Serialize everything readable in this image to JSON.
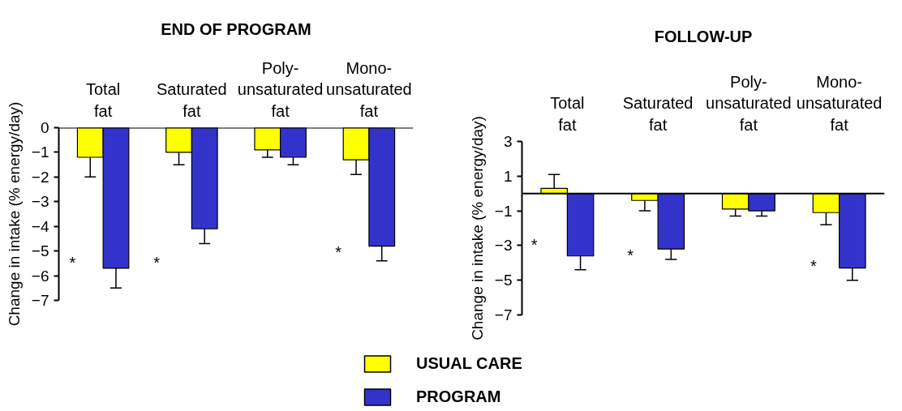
{
  "chart_data": [
    {
      "type": "bar",
      "title": "END OF PROGRAM",
      "ylabel": "Change in intake (% energy/day)",
      "categories": [
        "Total\nfat",
        "Saturated\nfat",
        "Poly-\nunsaturated\nfat",
        "Mono-\nunsaturated\nfat"
      ],
      "series": [
        {
          "name": "USUAL CARE",
          "color": "#ffff00",
          "values": [
            -1.2,
            -1.0,
            -0.9,
            -1.3
          ],
          "errors": [
            [
              -2.0,
              -1.2
            ],
            [
              -1.5,
              -1.0
            ],
            [
              -1.2,
              -0.9
            ],
            [
              -1.9,
              -1.3
            ]
          ]
        },
        {
          "name": "PROGRAM",
          "color": "#3333cc",
          "values": [
            -5.7,
            -4.1,
            -1.2,
            -4.8
          ],
          "errors": [
            [
              -6.5,
              -5.7
            ],
            [
              -4.7,
              -4.1
            ],
            [
              -1.5,
              -1.2
            ],
            [
              -5.4,
              -4.8
            ]
          ]
        }
      ],
      "ylim": [
        -7,
        0
      ],
      "yticks": [
        0,
        -1,
        -2,
        -3,
        -4,
        -5,
        -6,
        -7
      ],
      "legend": "bottom",
      "annotations": [
        "*",
        "*",
        "*"
      ]
    },
    {
      "type": "bar",
      "title": "FOLLOW-UP",
      "ylabel": "Change in intake (% energy/day)",
      "categories": [
        "Total\nfat",
        "Saturated\nfat",
        "Poly-\nunsaturated\nfat",
        "Mono-\nunsaturated\nfat"
      ],
      "series": [
        {
          "name": "USUAL CARE",
          "color": "#ffff00",
          "values": [
            0.3,
            -0.4,
            -0.9,
            -1.1
          ],
          "errors": [
            [
              0.3,
              1.1
            ],
            [
              -1.0,
              -0.4
            ],
            [
              -1.3,
              -0.9
            ],
            [
              -1.8,
              -1.1
            ]
          ]
        },
        {
          "name": "PROGRAM",
          "color": "#3333cc",
          "values": [
            -3.6,
            -3.2,
            -1.0,
            -4.3
          ],
          "errors": [
            [
              -4.4,
              -3.6
            ],
            [
              -3.8,
              -3.2
            ],
            [
              -1.3,
              -1.0
            ],
            [
              -5.0,
              -4.3
            ]
          ]
        }
      ],
      "ylim": [
        -7,
        3
      ],
      "yticks": [
        3,
        1,
        -1,
        -3,
        -5,
        -7
      ],
      "legend": "bottom",
      "annotations": [
        "*",
        "*",
        "*"
      ]
    }
  ]
}
